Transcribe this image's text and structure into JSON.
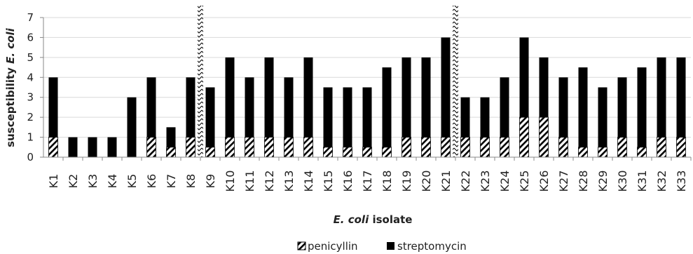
{
  "chart_data": {
    "type": "bar",
    "stacked": true,
    "title": "",
    "xlabel": {
      "italic_part": "E. coli",
      "rest": " isolate"
    },
    "ylabel": {
      "plain_part": "susceptibility ",
      "italic_part": "E. coli"
    },
    "ylim": [
      0,
      7
    ],
    "yticks": [
      0,
      1,
      2,
      3,
      4,
      5,
      6,
      7
    ],
    "grid": true,
    "legend_position": "bottom",
    "categories": [
      "K1",
      "K2",
      "K3",
      "K4",
      "K5",
      "K6",
      "K7",
      "K8",
      "K9",
      "K10",
      "K11",
      "K12",
      "K13",
      "K14",
      "K15",
      "K16",
      "K17",
      "K18",
      "K19",
      "K20",
      "K21",
      "K22",
      "K23",
      "K24",
      "K25",
      "K26",
      "K27",
      "K28",
      "K29",
      "K30",
      "K31",
      "K32",
      "K33"
    ],
    "series": [
      {
        "name": "penicyllin",
        "pattern": "diagonal-hatch",
        "color": "#000000",
        "values": [
          1,
          0,
          0,
          0,
          0,
          1,
          0.5,
          1,
          0.5,
          1,
          1,
          1,
          1,
          1,
          0.5,
          0.5,
          0.5,
          0.5,
          1,
          1,
          1,
          1,
          1,
          1,
          2,
          2,
          1,
          0.5,
          0.5,
          1,
          0.5,
          1,
          1
        ]
      },
      {
        "name": "streptomycin",
        "pattern": "solid",
        "color": "#000000",
        "values": [
          3,
          1,
          1,
          1,
          3,
          3,
          1,
          3,
          3,
          4,
          3,
          4,
          3,
          4,
          3,
          3,
          3,
          4,
          4,
          4,
          5,
          2,
          2,
          3,
          4,
          3,
          3,
          4,
          3,
          3,
          4,
          4,
          4
        ]
      }
    ],
    "separators_after": [
      "K8",
      "K21"
    ]
  }
}
